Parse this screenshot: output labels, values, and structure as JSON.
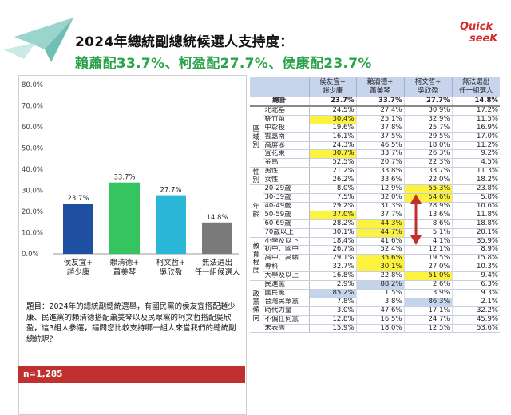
{
  "header": {
    "title_line1": "2024年總統副總統候選人支持度：",
    "title_line2": "賴蕭配33.7%、柯盈配27.7%、侯康配23.7%"
  },
  "logo": {
    "line1": "Quick",
    "line2": "seeK",
    "color": "#d62b2b"
  },
  "colors": {
    "hou": "#1f4fa0",
    "lai": "#36c460",
    "ko": "#2bb8d8",
    "none": "#7a7a7a",
    "highlight_yellow": "#fdf23e",
    "highlight_blue": "#c4d4ea",
    "arrow": "#c0302e"
  },
  "chart_data": {
    "type": "bar",
    "categories": [
      [
        "侯友宜+",
        "趙少康"
      ],
      [
        "賴清德+",
        "蕭美琴"
      ],
      [
        "柯文哲+",
        "吳欣盈"
      ],
      [
        "無法選出",
        "任一組候選人"
      ]
    ],
    "values": [
      23.7,
      33.7,
      27.7,
      14.8
    ],
    "value_labels": [
      "23.7%",
      "33.7%",
      "27.7%",
      "14.8%"
    ],
    "ylim": [
      0,
      80
    ],
    "yticks": [
      "0.0%",
      "10.0%",
      "20.0%",
      "30.0%",
      "40.0%",
      "50.0%",
      "60.0%",
      "70.0%",
      "80.0%"
    ],
    "grid": false,
    "title": "",
    "xlabel": "",
    "ylabel": ""
  },
  "question": "題目：2024年的總統副總統選舉，有國民黨的侯友宜搭配趙少康、民進黨的賴清德搭配蕭美琴以及民眾黨的柯文哲搭配吳欣盈，這3組人參選，請問您比較支持哪一組人來當我們的總統副總統呢？",
  "sample": "n=1,285",
  "table": {
    "headers": [
      [
        "侯友宜+",
        "趙少康"
      ],
      [
        "賴清德+",
        "蕭美琴"
      ],
      [
        "柯文哲+",
        "吳欣盈"
      ],
      [
        "無法選出",
        "任一組選人"
      ]
    ],
    "total": {
      "label": "總計",
      "values": [
        "23.7%",
        "33.7%",
        "27.7%",
        "14.8%"
      ]
    },
    "groups": [
      {
        "label": "區域別",
        "rows": [
          {
            "label": "北北基",
            "values": [
              "24.5%",
              "27.4%",
              "30.9%",
              "17.2%"
            ],
            "hl": []
          },
          {
            "label": "桃竹苗",
            "values": [
              "30.4%",
              "25.1%",
              "32.9%",
              "11.5%"
            ],
            "hl": [
              0
            ]
          },
          {
            "label": "中彰投",
            "values": [
              "19.6%",
              "37.8%",
              "25.7%",
              "16.9%"
            ],
            "hl": []
          },
          {
            "label": "雲嘉南",
            "values": [
              "16.1%",
              "37.5%",
              "29.5%",
              "17.0%"
            ],
            "hl": []
          },
          {
            "label": "高屏澎",
            "values": [
              "24.3%",
              "46.5%",
              "18.0%",
              "11.2%"
            ],
            "hl": []
          },
          {
            "label": "宜花東",
            "values": [
              "30.7%",
              "33.7%",
              "26.3%",
              "9.2%"
            ],
            "hl": [
              0
            ]
          },
          {
            "label": "金馬",
            "values": [
              "52.5%",
              "20.7%",
              "22.3%",
              "4.5%"
            ],
            "hl": []
          }
        ]
      },
      {
        "label": "性別",
        "rows": [
          {
            "label": "男性",
            "values": [
              "21.2%",
              "33.8%",
              "33.7%",
              "11.3%"
            ],
            "hl": []
          },
          {
            "label": "女性",
            "values": [
              "26.2%",
              "33.6%",
              "22.0%",
              "18.2%"
            ],
            "hl": []
          }
        ]
      },
      {
        "label": "年齡",
        "rows": [
          {
            "label": "20-29歲",
            "values": [
              "8.0%",
              "12.9%",
              "55.3%",
              "23.8%"
            ],
            "hl": [
              2
            ]
          },
          {
            "label": "30-39歲",
            "values": [
              "7.5%",
              "32.0%",
              "54.6%",
              "5.8%"
            ],
            "hl": [
              2
            ]
          },
          {
            "label": "40-49歲",
            "values": [
              "29.2%",
              "31.3%",
              "28.9%",
              "10.6%"
            ],
            "hl": []
          },
          {
            "label": "50-59歲",
            "values": [
              "37.0%",
              "37.7%",
              "13.6%",
              "11.8%"
            ],
            "hl": [
              0
            ]
          },
          {
            "label": "60-69歲",
            "values": [
              "28.2%",
              "44.3%",
              "8.6%",
              "18.8%"
            ],
            "hl": [
              1
            ]
          },
          {
            "label": "70歲以上",
            "values": [
              "30.1%",
              "44.7%",
              "5.1%",
              "20.1%"
            ],
            "hl": [
              1
            ]
          }
        ]
      },
      {
        "label": "教育程度",
        "rows": [
          {
            "label": "小學及以下",
            "values": [
              "18.4%",
              "41.6%",
              "4.1%",
              "35.9%"
            ],
            "hl": []
          },
          {
            "label": "初中、國中",
            "values": [
              "26.7%",
              "52.4%",
              "12.1%",
              "8.9%"
            ],
            "hl": []
          },
          {
            "label": "高中、高職",
            "values": [
              "29.1%",
              "35.6%",
              "19.5%",
              "15.8%"
            ],
            "hl": [
              1
            ]
          },
          {
            "label": "專科",
            "values": [
              "32.7%",
              "30.1%",
              "27.0%",
              "10.3%"
            ],
            "hl": [
              1
            ]
          },
          {
            "label": "大學及以上",
            "values": [
              "16.8%",
              "22.8%",
              "51.0%",
              "9.4%"
            ],
            "hl": [
              2
            ]
          }
        ]
      },
      {
        "label": "政黨傾向",
        "rows": [
          {
            "label": "民進黨",
            "values": [
              "2.9%",
              "88.2%",
              "2.6%",
              "6.3%"
            ],
            "hl": [],
            "hb": [
              1
            ]
          },
          {
            "label": "國民黨",
            "values": [
              "85.2%",
              "1.5%",
              "3.9%",
              "9.3%"
            ],
            "hl": [],
            "hb": [
              0
            ]
          },
          {
            "label": "台灣民眾黨",
            "values": [
              "7.8%",
              "3.8%",
              "86.3%",
              "2.1%"
            ],
            "hl": [],
            "hb": [
              2
            ]
          },
          {
            "label": "時代力量",
            "values": [
              "3.0%",
              "47.6%",
              "17.1%",
              "32.2%"
            ],
            "hl": []
          },
          {
            "label": "不偏任何黨",
            "values": [
              "12.8%",
              "16.5%",
              "24.7%",
              "45.9%"
            ],
            "hl": []
          },
          {
            "label": "未表態",
            "values": [
              "15.9%",
              "18.0%",
              "12.5%",
              "53.6%"
            ],
            "hl": []
          }
        ]
      }
    ]
  }
}
